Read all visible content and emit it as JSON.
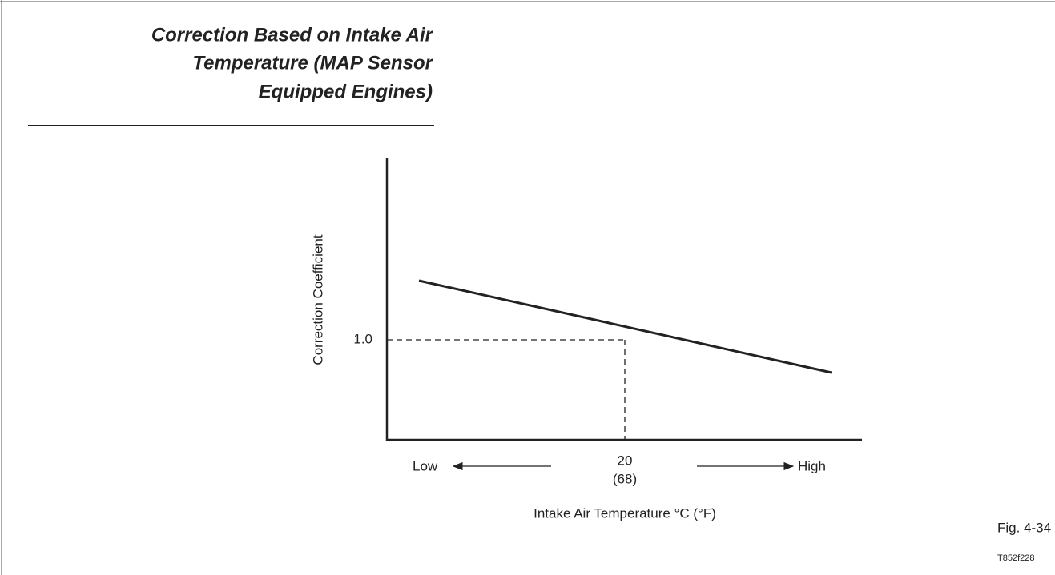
{
  "header": {
    "title_lines": [
      "Correction Based on Intake Air",
      "Temperature (MAP Sensor",
      "Equipped Engines)"
    ]
  },
  "figure": {
    "y_axis_label": "Correction Coefficient",
    "y_reference_label": "1.0",
    "x_axis_label": "Intake Air Temperature °C (°F)",
    "x_low_label": "Low",
    "x_high_label": "High",
    "x_reference_label": "20",
    "x_reference_sublabel": "(68)"
  },
  "footer": {
    "figure_number": "Fig. 4-34",
    "code": "T852f228"
  }
}
